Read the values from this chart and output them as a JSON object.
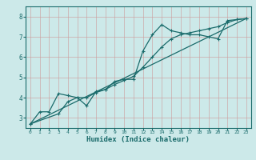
{
  "xlabel": "Humidex (Indice chaleur)",
  "ylabel": "",
  "xlim": [
    -0.5,
    23.5
  ],
  "ylim": [
    2.5,
    8.5
  ],
  "xticks": [
    0,
    1,
    2,
    3,
    4,
    5,
    6,
    7,
    8,
    9,
    10,
    11,
    12,
    13,
    14,
    15,
    16,
    17,
    18,
    19,
    20,
    21,
    22,
    23
  ],
  "yticks": [
    3,
    4,
    5,
    6,
    7,
    8
  ],
  "bg_color": "#cce9e9",
  "line_color": "#1a6b6b",
  "grid_color": "#b0cccc",
  "series1_x": [
    0,
    1,
    2,
    3,
    4,
    5,
    6,
    7,
    8,
    9,
    10,
    11,
    12,
    13,
    14,
    15,
    16,
    17,
    18,
    19,
    20,
    21,
    22,
    23
  ],
  "series1_y": [
    2.7,
    3.3,
    3.3,
    4.2,
    4.1,
    4.0,
    3.6,
    4.3,
    4.4,
    4.8,
    4.9,
    4.9,
    6.3,
    7.1,
    7.6,
    7.3,
    7.2,
    7.1,
    7.1,
    7.0,
    6.9,
    7.8,
    7.85,
    7.9
  ],
  "series2_x": [
    0,
    3,
    4,
    5,
    6,
    7,
    8,
    9,
    10,
    11,
    12,
    13,
    14,
    15,
    16,
    17,
    18,
    19,
    20,
    21,
    22,
    23
  ],
  "series2_y": [
    2.7,
    3.2,
    3.8,
    4.0,
    4.0,
    4.25,
    4.4,
    4.65,
    4.85,
    5.05,
    5.5,
    6.0,
    6.5,
    6.9,
    7.1,
    7.2,
    7.3,
    7.4,
    7.5,
    7.7,
    7.85,
    7.9
  ],
  "series3_x": [
    0,
    23
  ],
  "series3_y": [
    2.7,
    7.9
  ]
}
